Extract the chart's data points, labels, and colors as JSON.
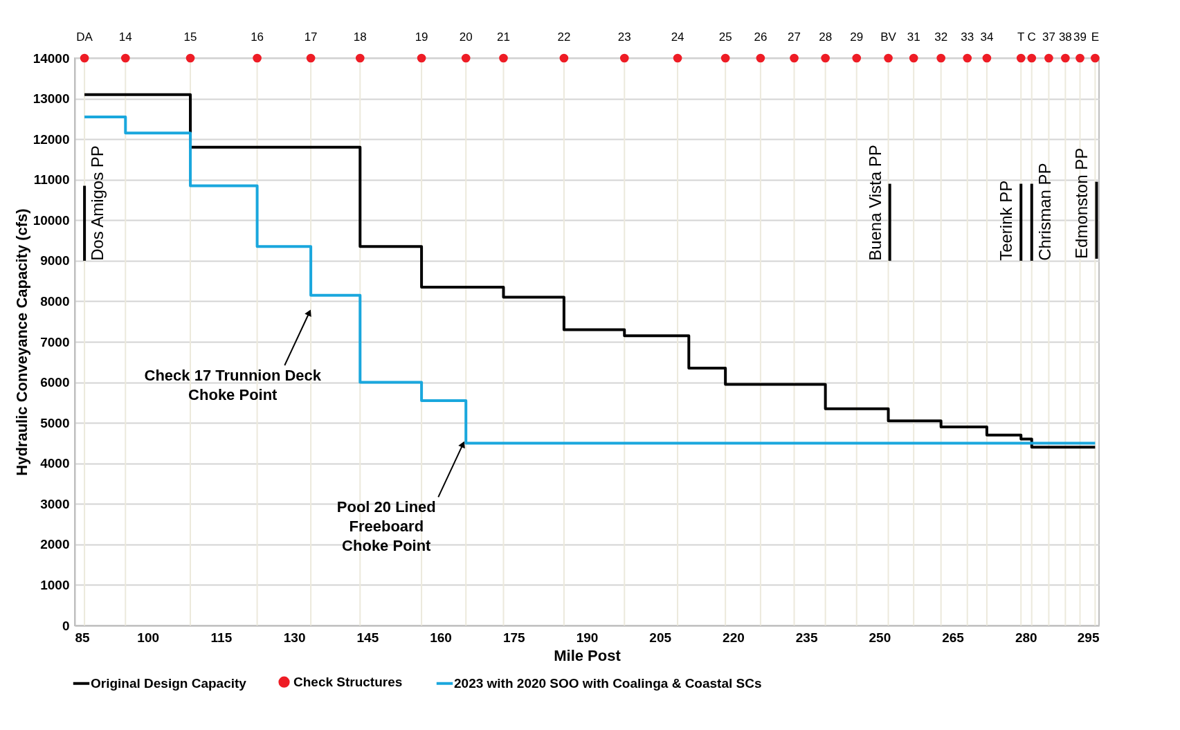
{
  "chart_data": {
    "type": "step",
    "xlabel": "Mile Post",
    "ylabel": "Hydraulic Conveyance Capacity (cfs)",
    "xlim": [
      85,
      295
    ],
    "xticks": [
      85,
      100,
      115,
      130,
      145,
      160,
      175,
      190,
      205,
      220,
      235,
      250,
      265,
      280,
      295
    ],
    "ylim": [
      0,
      14000
    ],
    "yticks": [
      0,
      1000,
      2000,
      3000,
      4000,
      5000,
      6000,
      7000,
      8000,
      9000,
      10000,
      11000,
      12000,
      13000,
      14000
    ],
    "grid": "y",
    "legend": "bottom",
    "series": [
      {
        "name": "Original Design Capacity",
        "color": "#000000",
        "x": [
          87.0,
          108.7,
          143.5,
          156.1,
          172.9,
          185.3,
          197.7,
          210.9,
          218.4,
          238.9,
          251.8,
          262.6,
          272.0,
          279.0,
          281.2,
          294.2
        ],
        "values": [
          13100,
          11800,
          9350,
          8350,
          8100,
          7300,
          7150,
          6350,
          5950,
          5350,
          5050,
          4900,
          4700,
          4600,
          4400,
          4400
        ]
      },
      {
        "name": "Check Structures",
        "type": "scatter",
        "color": "#ee1c25",
        "marker": "circle",
        "x": [
          87.0,
          95.4,
          108.7,
          122.4,
          133.4,
          143.5,
          156.1,
          165.2,
          172.9,
          185.3,
          197.7,
          208.6,
          218.4,
          225.6,
          232.5,
          238.9,
          245.3,
          251.8,
          257.0,
          262.6,
          268.0,
          272.0,
          279.0,
          281.2,
          284.7,
          288.1,
          291.1,
          294.2
        ],
        "values": [
          14000,
          14000,
          14000,
          14000,
          14000,
          14000,
          14000,
          14000,
          14000,
          14000,
          14000,
          14000,
          14000,
          14000,
          14000,
          14000,
          14000,
          14000,
          14000,
          14000,
          14000,
          14000,
          14000,
          14000,
          14000,
          14000,
          14000,
          14000
        ]
      },
      {
        "name": "2023 with 2020 SOO with Coalinga & Coastal SCs",
        "color": "#1aa7dd",
        "x": [
          87.0,
          95.4,
          108.7,
          122.4,
          133.4,
          143.5,
          156.1,
          165.2,
          294.2
        ],
        "values": [
          12550,
          12150,
          10850,
          9350,
          8150,
          6000,
          5550,
          4500,
          4500
        ]
      },
      {
        "name": "Dos Amigos PP",
        "type": "line",
        "color": "#000000",
        "x": [
          87.0,
          87.0
        ],
        "values": [
          9000,
          10850
        ]
      },
      {
        "name": "Buena Vista PP",
        "type": "line",
        "color": "#000000",
        "x": [
          252.1,
          252.1
        ],
        "values": [
          9000,
          10900
        ]
      },
      {
        "name": "Teerink PP",
        "type": "line",
        "color": "#000000",
        "x": [
          279.0,
          279.0
        ],
        "values": [
          9000,
          10900
        ]
      },
      {
        "name": "Chrisman PP",
        "type": "line",
        "color": "#000000",
        "x": [
          281.2,
          281.2
        ],
        "values": [
          9000,
          10900
        ]
      },
      {
        "name": "Edmonston PP",
        "type": "line",
        "color": "#000000",
        "x": [
          294.5,
          294.5
        ],
        "values": [
          9050,
          10950
        ]
      }
    ],
    "annotations": [
      {
        "text": "DA",
        "x": 87.0,
        "y": 14000
      },
      {
        "text": "14",
        "x": 95.4,
        "y": 14000
      },
      {
        "text": "15",
        "x": 108.7,
        "y": 14000
      },
      {
        "text": "16",
        "x": 122.4,
        "y": 14000
      },
      {
        "text": "17",
        "x": 133.4,
        "y": 14000
      },
      {
        "text": "18",
        "x": 143.5,
        "y": 14000
      },
      {
        "text": "19",
        "x": 156.1,
        "y": 14000
      },
      {
        "text": "20",
        "x": 165.2,
        "y": 14000
      },
      {
        "text": "21",
        "x": 172.9,
        "y": 14000
      },
      {
        "text": "22",
        "x": 185.3,
        "y": 14000
      },
      {
        "text": "23",
        "x": 197.7,
        "y": 14000
      },
      {
        "text": "24",
        "x": 208.6,
        "y": 14000
      },
      {
        "text": "25",
        "x": 218.4,
        "y": 14000
      },
      {
        "text": "26",
        "x": 225.6,
        "y": 14000
      },
      {
        "text": "27",
        "x": 232.5,
        "y": 14000
      },
      {
        "text": "28",
        "x": 238.9,
        "y": 14000
      },
      {
        "text": "29",
        "x": 245.3,
        "y": 14000
      },
      {
        "text": "BV",
        "x": 251.8,
        "y": 14000
      },
      {
        "text": "31",
        "x": 257.0,
        "y": 14000
      },
      {
        "text": "32",
        "x": 262.6,
        "y": 14000
      },
      {
        "text": "33",
        "x": 268.0,
        "y": 14000
      },
      {
        "text": "34",
        "x": 272.0,
        "y": 14000
      },
      {
        "text": "T",
        "x": 279.0,
        "y": 14000
      },
      {
        "text": "C",
        "x": 281.2,
        "y": 14000
      },
      {
        "text": "37",
        "x": 284.7,
        "y": 14000
      },
      {
        "text": "38",
        "x": 288.1,
        "y": 14000
      },
      {
        "text": "39",
        "x": 291.1,
        "y": 14000
      },
      {
        "text": "E",
        "x": 294.2,
        "y": 14000
      },
      {
        "text": "Check 17 Trunnion Deck\nChoke Point",
        "x": 133,
        "y": 7700
      },
      {
        "text": "Pool 20 Lined\nFreeboard\nChoke Point",
        "x": 164.5,
        "y": 4450
      }
    ]
  }
}
